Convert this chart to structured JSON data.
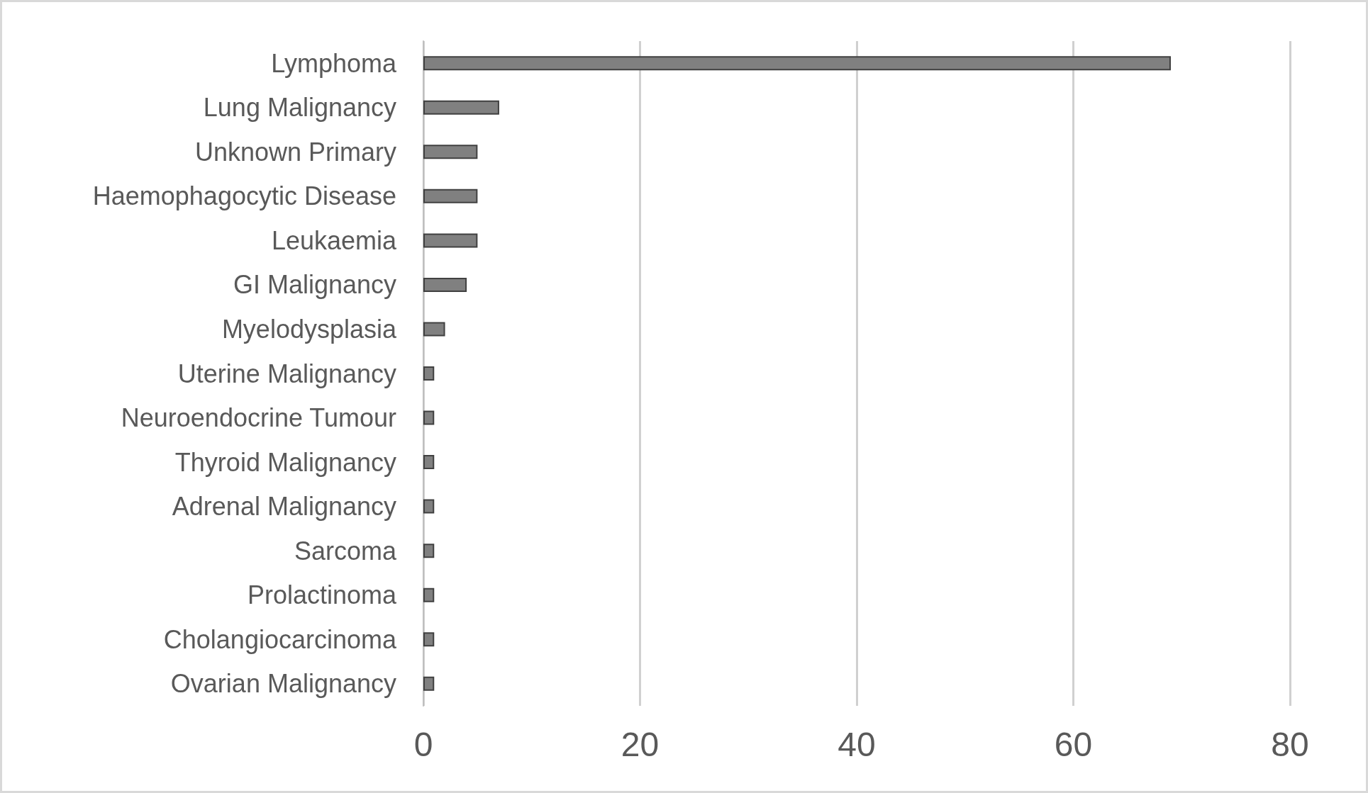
{
  "chart_data": {
    "type": "bar",
    "orientation": "horizontal",
    "categories": [
      "Lymphoma",
      "Lung Malignancy",
      "Unknown Primary",
      "Haemophagocytic Disease",
      "Leukaemia",
      "GI Malignancy",
      "Myelodysplasia",
      "Uterine Malignancy",
      "Neuroendocrine Tumour",
      "Thyroid Malignancy",
      "Adrenal Malignancy",
      "Sarcoma",
      "Prolactinoma",
      "Cholangiocarcinoma",
      "Ovarian Malignancy"
    ],
    "values": [
      69,
      7,
      5,
      5,
      5,
      4,
      2,
      1,
      1,
      1,
      1,
      1,
      1,
      1,
      1
    ],
    "color": "#808080",
    "xlim": [
      0,
      80
    ],
    "xticks": [
      0,
      20,
      40,
      60,
      80
    ],
    "grid": "x"
  }
}
